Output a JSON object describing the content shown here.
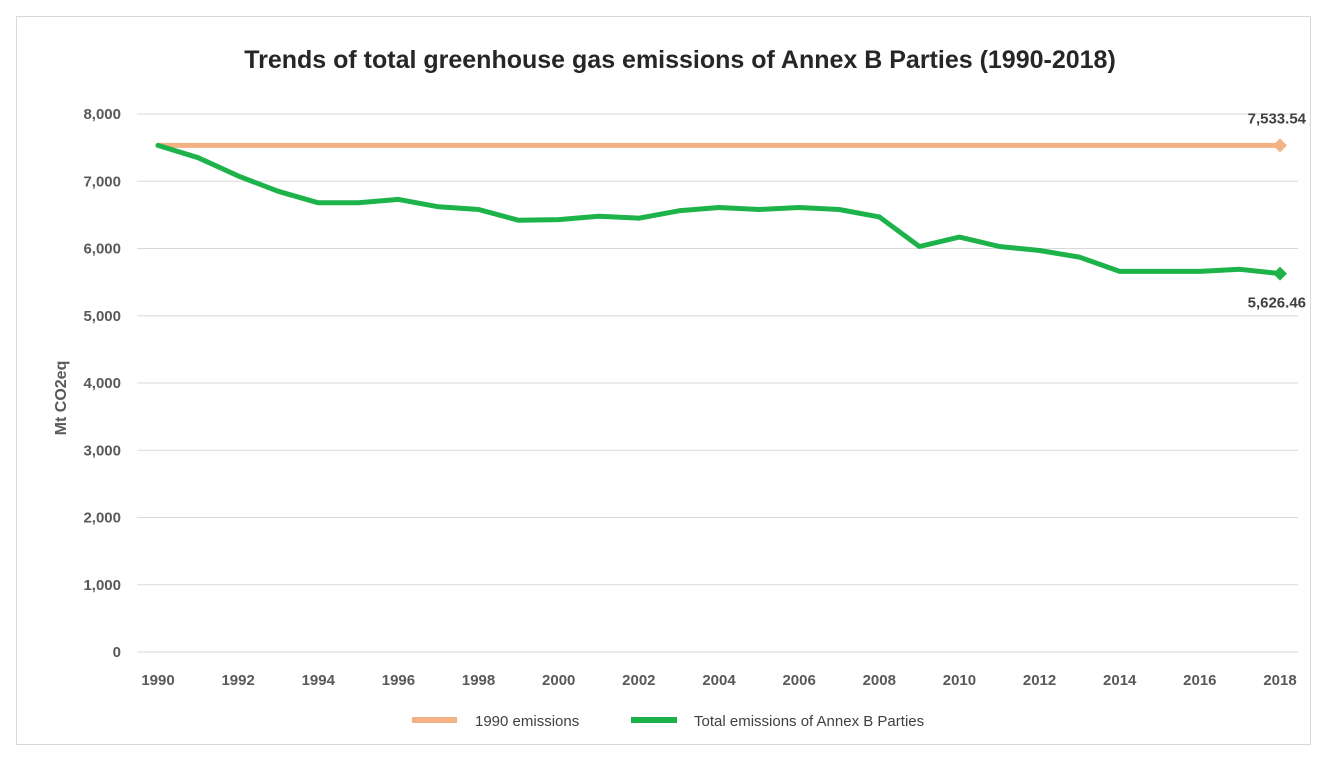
{
  "chart_data": {
    "type": "line",
    "title": "Trends of total greenhouse gas emissions of Annex B Parties (1990-2018)",
    "ylabel": "Mt CO2eq",
    "xlabel": "",
    "ylim": [
      0,
      8000
    ],
    "yticks": [
      0,
      1000,
      2000,
      3000,
      4000,
      5000,
      6000,
      7000,
      8000
    ],
    "ytick_labels": [
      "0",
      "1,000",
      "2,000",
      "3,000",
      "4,000",
      "5,000",
      "6,000",
      "7,000",
      "8,000"
    ],
    "x": [
      1990,
      1991,
      1992,
      1993,
      1994,
      1995,
      1996,
      1997,
      1998,
      1999,
      2000,
      2001,
      2002,
      2003,
      2004,
      2005,
      2006,
      2007,
      2008,
      2009,
      2010,
      2011,
      2012,
      2013,
      2014,
      2015,
      2016,
      2017,
      2018
    ],
    "xtick_labels": [
      "1990",
      "1992",
      "1994",
      "1996",
      "1998",
      "2000",
      "2002",
      "2004",
      "2006",
      "2008",
      "2010",
      "2012",
      "2014",
      "2016",
      "2018"
    ],
    "grid": true,
    "legend_position": "bottom",
    "series": [
      {
        "name": "1990 emissions",
        "color": "#f4b183",
        "values": [
          7533.54,
          7533.54,
          7533.54,
          7533.54,
          7533.54,
          7533.54,
          7533.54,
          7533.54,
          7533.54,
          7533.54,
          7533.54,
          7533.54,
          7533.54,
          7533.54,
          7533.54,
          7533.54,
          7533.54,
          7533.54,
          7533.54,
          7533.54,
          7533.54,
          7533.54,
          7533.54,
          7533.54,
          7533.54,
          7533.54,
          7533.54,
          7533.54,
          7533.54
        ],
        "end_label": "7,533.54"
      },
      {
        "name": "Total emissions of Annex B Parties",
        "color": "#1db34a",
        "values": [
          7533.54,
          7350,
          7080,
          6850,
          6680,
          6680,
          6730,
          6620,
          6580,
          6420,
          6430,
          6480,
          6450,
          6560,
          6610,
          6580,
          6610,
          6580,
          6470,
          6030,
          6170,
          6030,
          5970,
          5870,
          5660,
          5660,
          5660,
          5690,
          5626.46
        ],
        "end_label": "5,626.46"
      }
    ]
  }
}
